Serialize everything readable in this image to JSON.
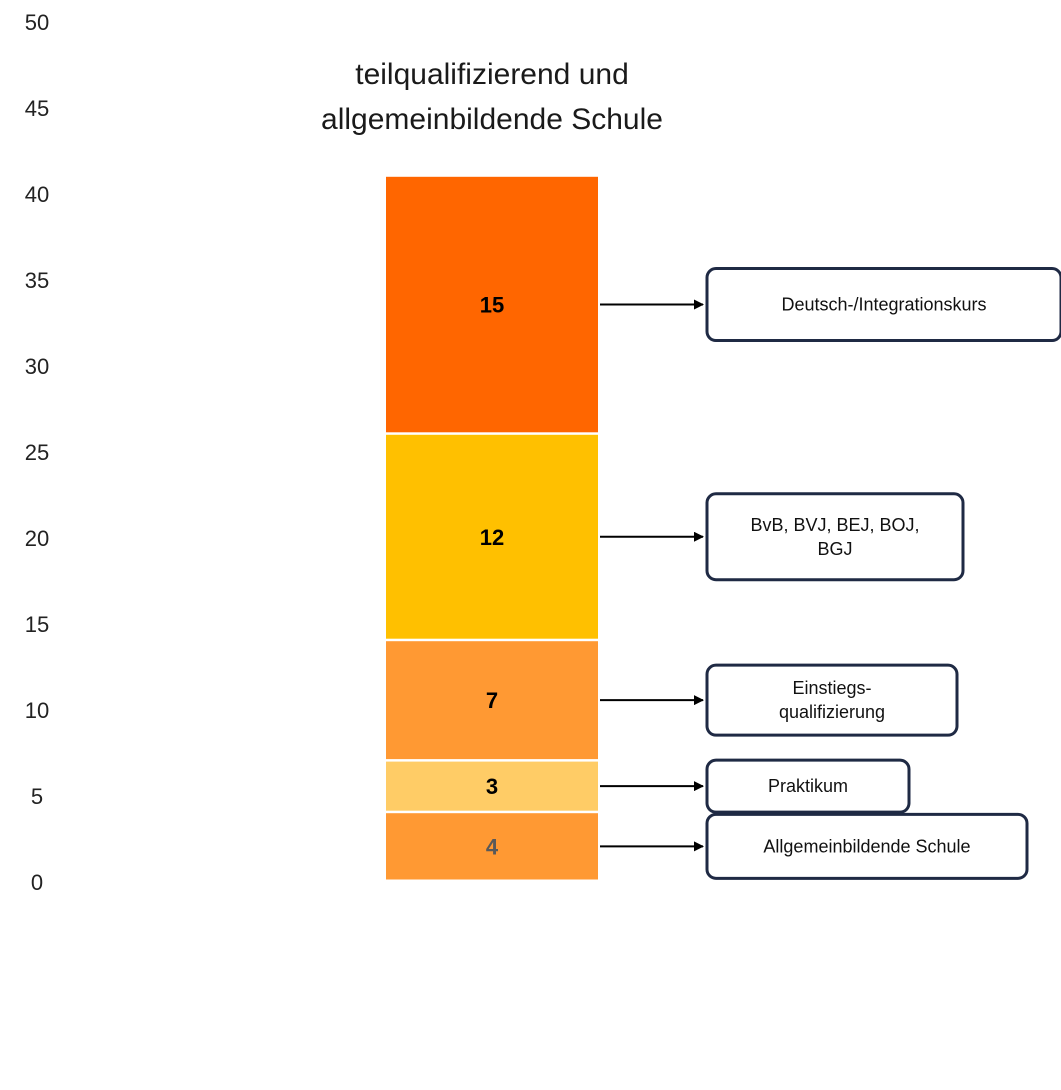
{
  "chart_data": {
    "type": "bar",
    "title_lines": [
      "teilqualifizierend und",
      "allgemeinbildende Schule"
    ],
    "xlabel": "",
    "ylabel": "",
    "ylim": [
      0,
      50
    ],
    "yticks": [
      0,
      5,
      10,
      15,
      20,
      25,
      30,
      35,
      40,
      45,
      50
    ],
    "grid": false,
    "stacked": true,
    "segments": [
      {
        "value": 4,
        "label": "4",
        "color": "#ff9933",
        "label_color": "#595959",
        "callout": [
          "Allgemeinbildende Schule"
        ]
      },
      {
        "value": 3,
        "label": "3",
        "color": "#ffcc66",
        "label_color": "#000000",
        "callout": [
          "Praktikum"
        ]
      },
      {
        "value": 7,
        "label": "7",
        "color": "#ff9933",
        "label_color": "#000000",
        "callout": [
          "Einstiegs-",
          "qualifizierung"
        ]
      },
      {
        "value": 12,
        "label": "12",
        "color": "#ffc000",
        "label_color": "#000000",
        "callout": [
          "BvB, BVJ, BEJ, BOJ,",
          "BGJ"
        ]
      },
      {
        "value": 15,
        "label": "15",
        "color": "#ff6600",
        "label_color": "#000000",
        "callout": [
          "Deutsch-/Integrationskurs"
        ]
      }
    ]
  }
}
